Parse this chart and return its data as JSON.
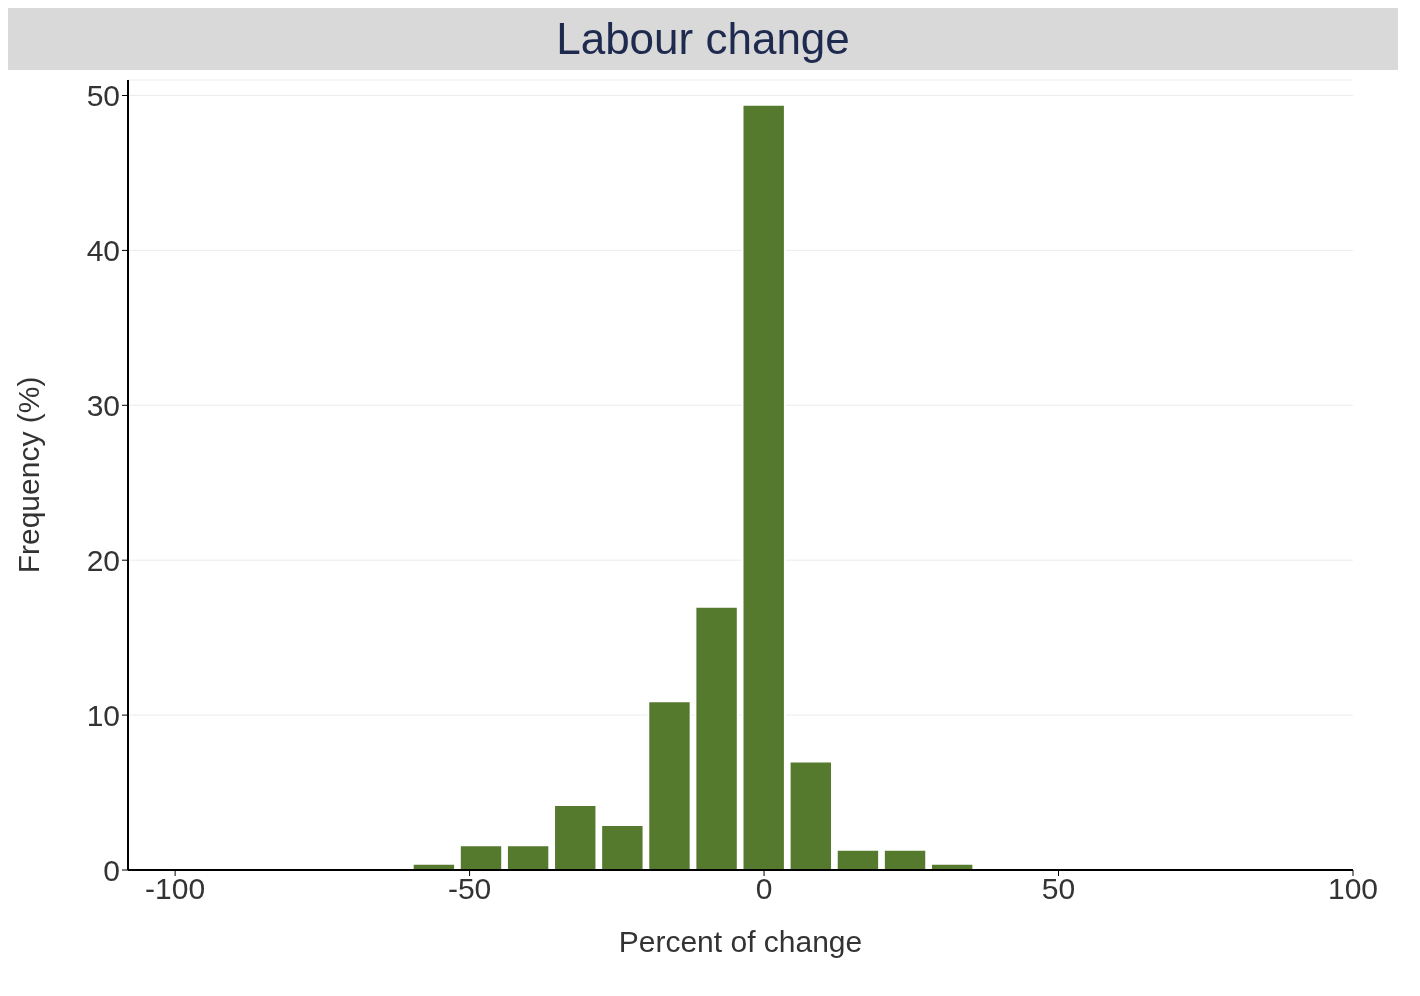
{
  "chart_data": {
    "type": "histogram",
    "title": "Labour change",
    "xlabel": "Percent of change",
    "ylabel": "Frequency (%)",
    "bins": [
      -60,
      -52,
      -44,
      -36,
      -28,
      -20,
      -12,
      -4,
      4,
      12,
      20,
      28,
      36
    ],
    "values": [
      0.4,
      1.6,
      1.6,
      4.2,
      2.9,
      10.9,
      17.0,
      49.4,
      7.0,
      1.3,
      1.3,
      0.4
    ],
    "color": "#557a2d",
    "xlim": [
      -108,
      100
    ],
    "xticks": [
      -100,
      -50,
      0,
      50,
      100
    ],
    "ylim": [
      0,
      51
    ],
    "yticks": [
      0,
      10,
      20,
      30,
      40,
      50
    ],
    "grid": "y",
    "legend": false
  }
}
